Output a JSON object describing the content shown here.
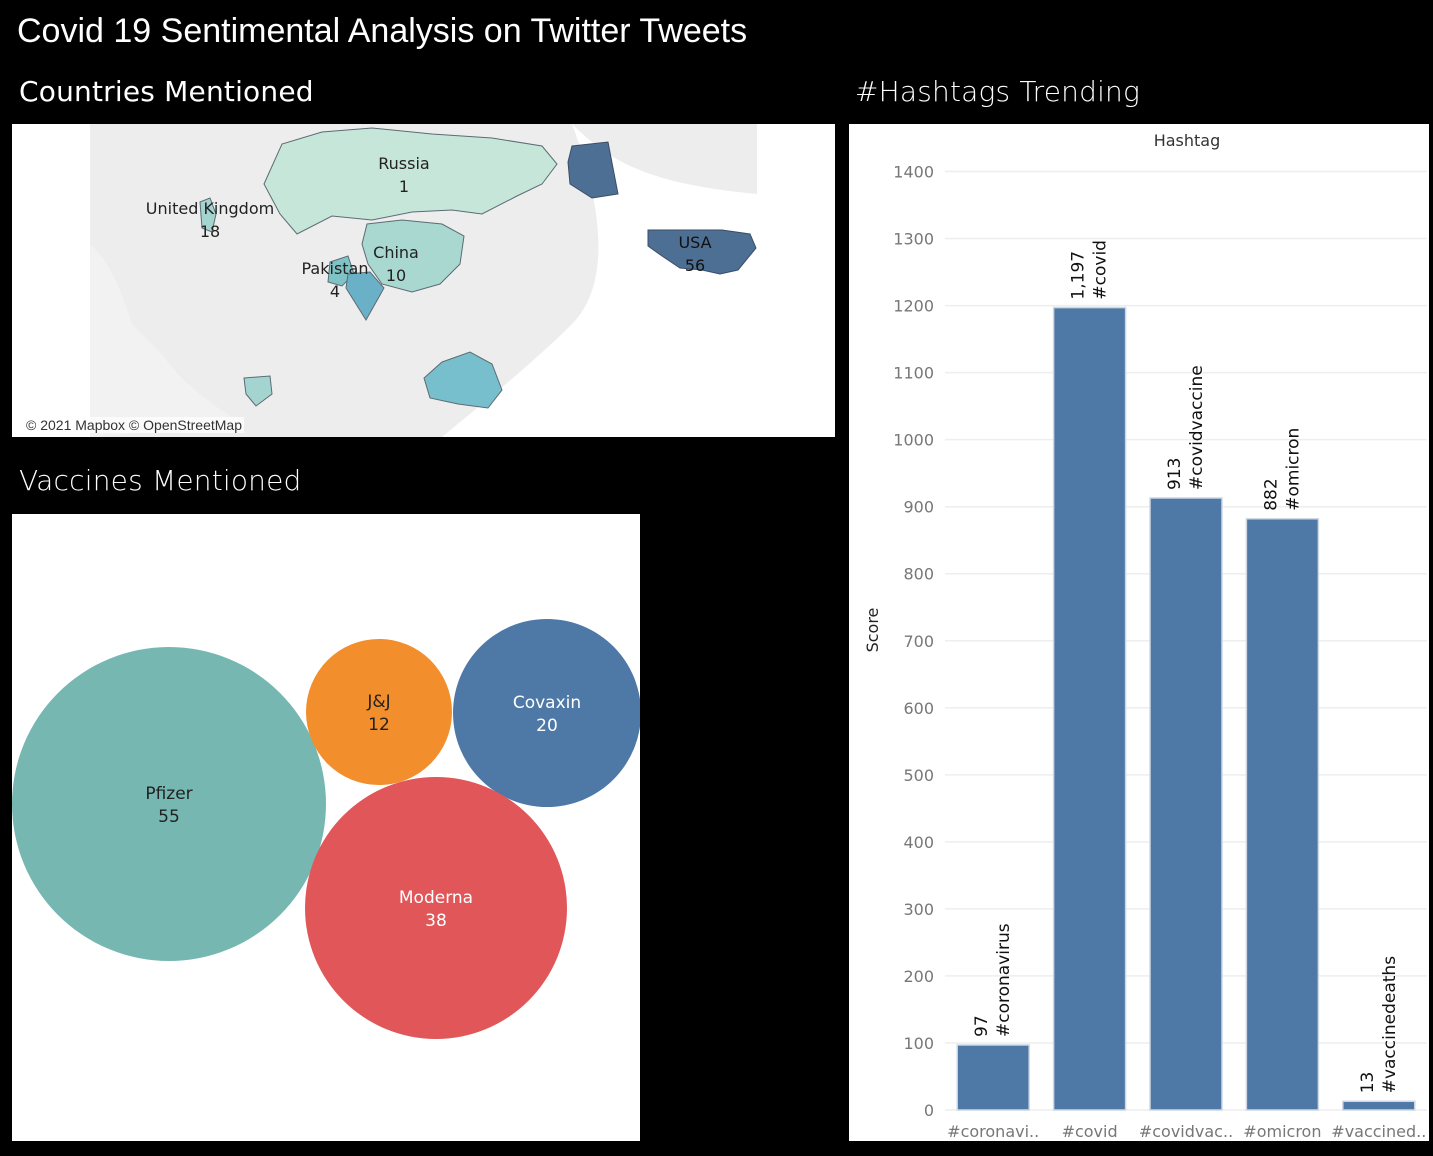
{
  "page": {
    "title": "Covid 19 Sentimental Analysis on Twitter Tweets",
    "countries_heading": "Countries Mentioned",
    "vaccines_heading": "Vaccines Mentioned",
    "hashtags_heading": "#Hashtags Trending",
    "map_attribution": "© 2021 Mapbox © OpenStreetMap"
  },
  "colors": {
    "bar": "#4e79a7",
    "pfizer": "#76b7b2",
    "jj": "#f28e2b",
    "covaxin": "#4e79a7",
    "moderna": "#e15759"
  },
  "chart_data": [
    {
      "type": "map",
      "title": "Countries Mentioned",
      "regions": [
        {
          "name": "Russia",
          "value": 1
        },
        {
          "name": "United Kingdom",
          "value": 18
        },
        {
          "name": "China",
          "value": 10
        },
        {
          "name": "Pakistan",
          "value": 4
        },
        {
          "name": "USA",
          "value": 56
        }
      ]
    },
    {
      "type": "bubble",
      "title": "Vaccines Mentioned",
      "items": [
        {
          "name": "Pfizer",
          "value": 55,
          "color": "#76b7b2"
        },
        {
          "name": "J&J",
          "value": 12,
          "color": "#f28e2b"
        },
        {
          "name": "Covaxin",
          "value": 20,
          "color": "#4e79a7"
        },
        {
          "name": "Moderna",
          "value": 38,
          "color": "#e15759"
        }
      ]
    },
    {
      "type": "bar",
      "title": "#Hashtags Trending",
      "header": "Hashtag",
      "ylabel": "Score",
      "ylim": [
        0,
        1450
      ],
      "yticks": [
        0,
        100,
        200,
        300,
        400,
        500,
        600,
        700,
        800,
        900,
        1000,
        1100,
        1200,
        1300,
        1400
      ],
      "categories": [
        "#coronavirus",
        "#covid",
        "#covidvaccine",
        "#omicron",
        "#vaccinedeaths"
      ],
      "tick_labels": [
        "#coronavi..",
        "#covid",
        "#covidvac..",
        "#omicron",
        "#vaccined.."
      ],
      "values": [
        97,
        1197,
        913,
        882,
        13
      ],
      "value_labels": [
        "97",
        "1,197",
        "913",
        "882",
        "13"
      ],
      "grid": true
    }
  ]
}
